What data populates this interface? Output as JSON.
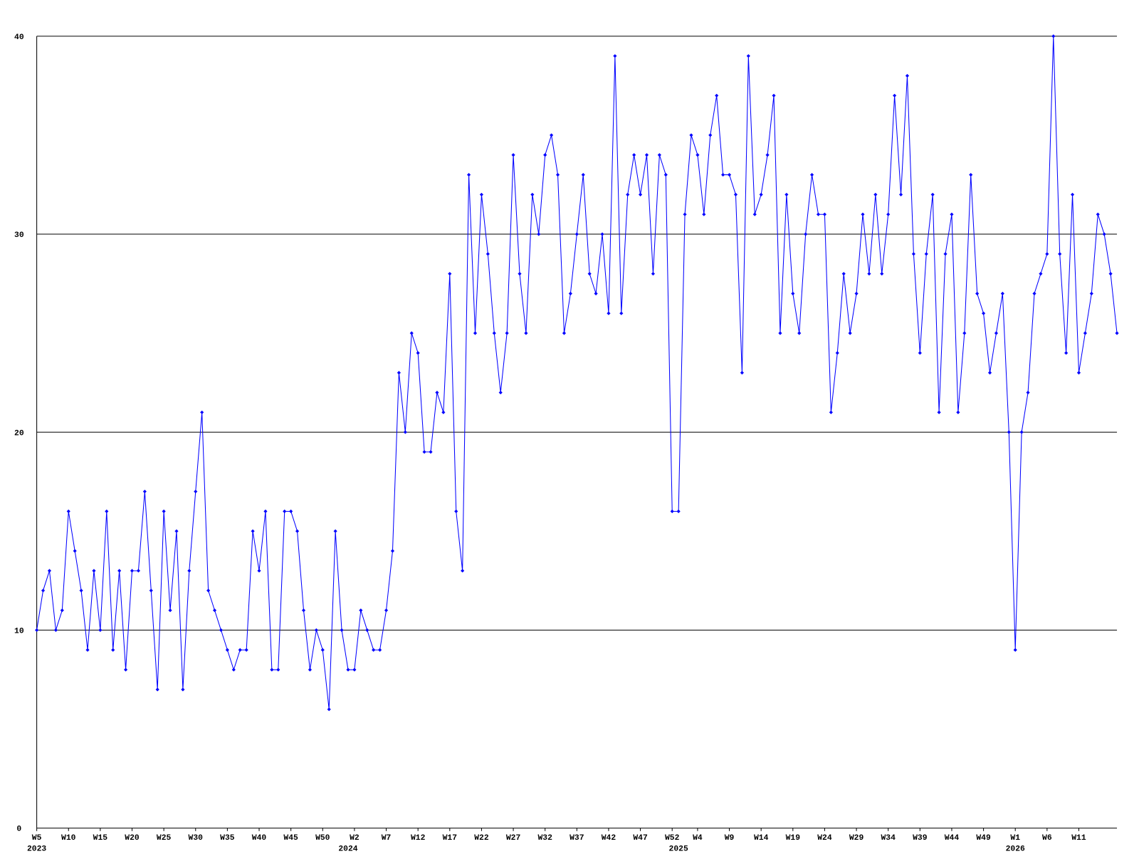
{
  "chart_data": {
    "type": "line",
    "categories": [
      "W5",
      null,
      null,
      null,
      null,
      "W10",
      null,
      null,
      null,
      null,
      "W15",
      null,
      null,
      null,
      null,
      "W20",
      null,
      null,
      null,
      null,
      "W25",
      null,
      null,
      null,
      null,
      "W30",
      null,
      null,
      null,
      null,
      "W35",
      null,
      null,
      null,
      null,
      "W40",
      null,
      null,
      null,
      null,
      "W45",
      null,
      null,
      null,
      null,
      "W50",
      null,
      null,
      null,
      null,
      "W2",
      null,
      null,
      null,
      null,
      "W7",
      null,
      null,
      null,
      null,
      "W12",
      null,
      null,
      null,
      null,
      "W17",
      null,
      null,
      null,
      null,
      "W22",
      null,
      null,
      null,
      null,
      "W27",
      null,
      null,
      null,
      null,
      "W32",
      null,
      null,
      null,
      null,
      "W37",
      null,
      null,
      null,
      null,
      "W42",
      null,
      null,
      null,
      null,
      "W47",
      null,
      null,
      null,
      null,
      "W52",
      null,
      null,
      null,
      "W4",
      null,
      null,
      null,
      null,
      "W9",
      null,
      null,
      null,
      null,
      "W14",
      null,
      null,
      null,
      null,
      "W19",
      null,
      null,
      null,
      null,
      "W24",
      null,
      null,
      null,
      null,
      "W29",
      null,
      null,
      null,
      null,
      "W34",
      null,
      null,
      null,
      null,
      "W39",
      null,
      null,
      null,
      null,
      "W44",
      null,
      null,
      null,
      null,
      "W49",
      null,
      null,
      null,
      null,
      "W1",
      null,
      null,
      null,
      null,
      "W6",
      null,
      null,
      null,
      null,
      "W11",
      null,
      null,
      null,
      null,
      null,
      null
    ],
    "category_years": [
      "2023",
      null,
      null,
      null,
      null,
      null,
      null,
      null,
      null,
      null,
      null,
      null,
      null,
      null,
      null,
      null,
      null,
      null,
      null,
      null,
      null,
      null,
      null,
      null,
      null,
      null,
      null,
      null,
      null,
      null,
      null,
      null,
      null,
      null,
      null,
      null,
      null,
      null,
      null,
      null,
      null,
      null,
      null,
      null,
      null,
      null,
      null,
      null,
      null,
      "2024",
      null,
      null,
      null,
      null,
      null,
      null,
      null,
      null,
      null,
      null,
      null,
      null,
      null,
      null,
      null,
      null,
      null,
      null,
      null,
      null,
      null,
      null,
      null,
      null,
      null,
      null,
      null,
      null,
      null,
      null,
      null,
      null,
      null,
      null,
      null,
      null,
      null,
      null,
      null,
      null,
      null,
      null,
      null,
      null,
      null,
      null,
      null,
      null,
      null,
      null,
      null,
      "2025",
      null,
      null,
      null,
      null,
      null,
      null,
      null,
      null,
      null,
      null,
      null,
      null,
      null,
      null,
      null,
      null,
      null,
      null,
      null,
      null,
      null,
      null,
      null,
      null,
      null,
      null,
      null,
      null,
      null,
      null,
      null,
      null,
      null,
      null,
      null,
      null,
      null,
      null,
      null,
      null,
      null,
      null,
      null,
      null,
      null,
      null,
      null,
      null,
      null,
      null,
      null,
      null,
      "2026",
      null,
      null,
      null,
      null,
      null,
      null,
      null,
      null,
      null,
      null,
      null,
      null,
      null,
      null,
      null,
      null
    ],
    "series": [
      {
        "color": "#0000ff",
        "values": [
          10,
          12,
          13,
          10,
          11,
          16,
          14,
          12,
          9,
          13,
          10,
          16,
          9,
          13,
          8,
          13,
          13,
          17,
          12,
          7,
          16,
          11,
          15,
          7,
          13,
          17,
          21,
          12,
          11,
          10,
          9,
          8,
          9,
          9,
          15,
          13,
          16,
          8,
          8,
          16,
          16,
          15,
          11,
          8,
          10,
          9,
          6,
          15,
          10,
          8,
          8,
          11,
          10,
          9,
          9,
          11,
          14,
          23,
          20,
          25,
          24,
          19,
          19,
          22,
          21,
          28,
          16,
          13,
          33,
          25,
          32,
          29,
          25,
          22,
          25,
          34,
          28,
          25,
          32,
          30,
          34,
          35,
          33,
          25,
          27,
          30,
          33,
          28,
          27,
          30,
          26,
          39,
          26,
          32,
          34,
          32,
          34,
          28,
          34,
          33,
          16,
          16,
          31,
          35,
          34,
          31,
          35,
          37,
          33,
          33,
          32,
          23,
          39,
          31,
          32,
          34,
          37,
          25,
          32,
          27,
          25,
          30,
          33,
          31,
          31,
          21,
          24,
          28,
          25,
          27,
          31,
          28,
          32,
          28,
          31,
          37,
          32,
          38,
          29,
          24,
          29,
          32,
          21,
          29,
          31,
          21,
          25,
          33,
          27,
          26,
          23,
          25,
          27,
          20,
          9,
          20,
          22,
          27,
          28,
          29,
          40,
          29,
          24,
          32,
          23,
          25,
          27,
          31,
          30,
          28,
          25
        ]
      }
    ],
    "ylim": [
      0,
      40
    ],
    "yticks": [
      0,
      10,
      20,
      30,
      40
    ],
    "grid": true
  }
}
